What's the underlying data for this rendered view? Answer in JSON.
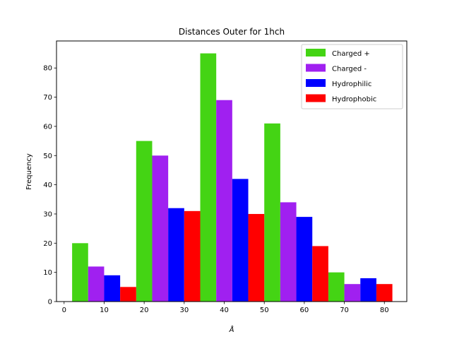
{
  "chart_data": {
    "type": "bar",
    "title": "Distances Outer for 1hch",
    "xlabel": "Å",
    "ylabel": "Frequency",
    "xlim": [
      -1.9,
      85.6
    ],
    "ylim": [
      0,
      89.25
    ],
    "xticks": [
      0,
      10,
      20,
      30,
      40,
      50,
      60,
      70,
      80
    ],
    "yticks": [
      0,
      10,
      20,
      30,
      40,
      50,
      60,
      70,
      80
    ],
    "bin_edges": [
      2,
      18,
      34,
      50,
      66,
      82
    ],
    "legend_position": "upper right",
    "grid": false,
    "series": [
      {
        "name": "Charged +",
        "color": "#44d414",
        "values": [
          20,
          55,
          85,
          61,
          10
        ]
      },
      {
        "name": "Charged -",
        "color": "#a020f0",
        "values": [
          12,
          50,
          69,
          34,
          6
        ]
      },
      {
        "name": "Hydrophilic",
        "color": "#0000ff",
        "values": [
          9,
          32,
          42,
          29,
          8
        ]
      },
      {
        "name": "Hydrophobic",
        "color": "#ff0000",
        "values": [
          5,
          31,
          30,
          19,
          6
        ]
      }
    ]
  }
}
